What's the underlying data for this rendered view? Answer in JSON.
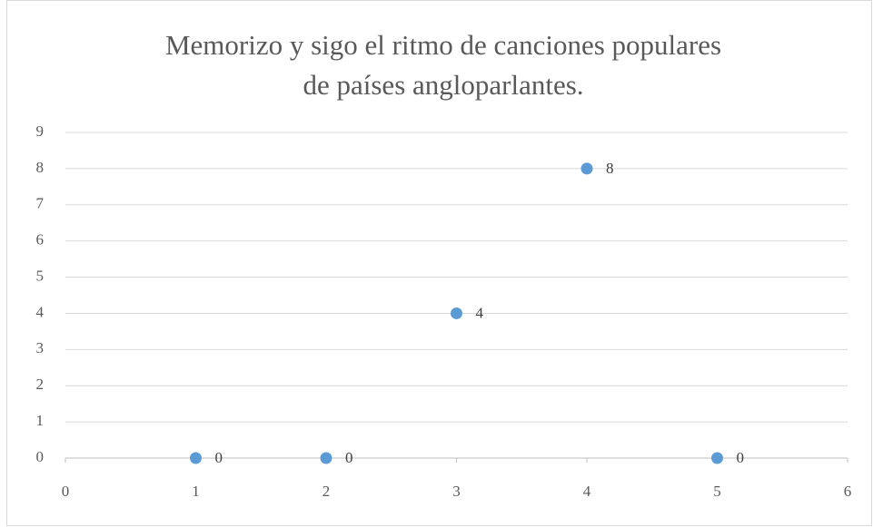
{
  "chart_data": {
    "type": "scatter",
    "title": [
      "Memorizo y sigo el ritmo de canciones populares",
      "de países angloparlantes."
    ],
    "series": [
      {
        "color": "#5b9bd5",
        "x": [
          1,
          2,
          3,
          4,
          5
        ],
        "values": [
          0,
          0,
          4,
          8,
          0
        ]
      }
    ],
    "xlim": [
      0,
      6
    ],
    "xticks": [
      0,
      1,
      2,
      3,
      4,
      5,
      6
    ],
    "ylim": [
      0,
      9
    ],
    "yticks": [
      0,
      1,
      2,
      3,
      4,
      5,
      6,
      7,
      8,
      9
    ],
    "grid": true,
    "data_labels": true
  }
}
